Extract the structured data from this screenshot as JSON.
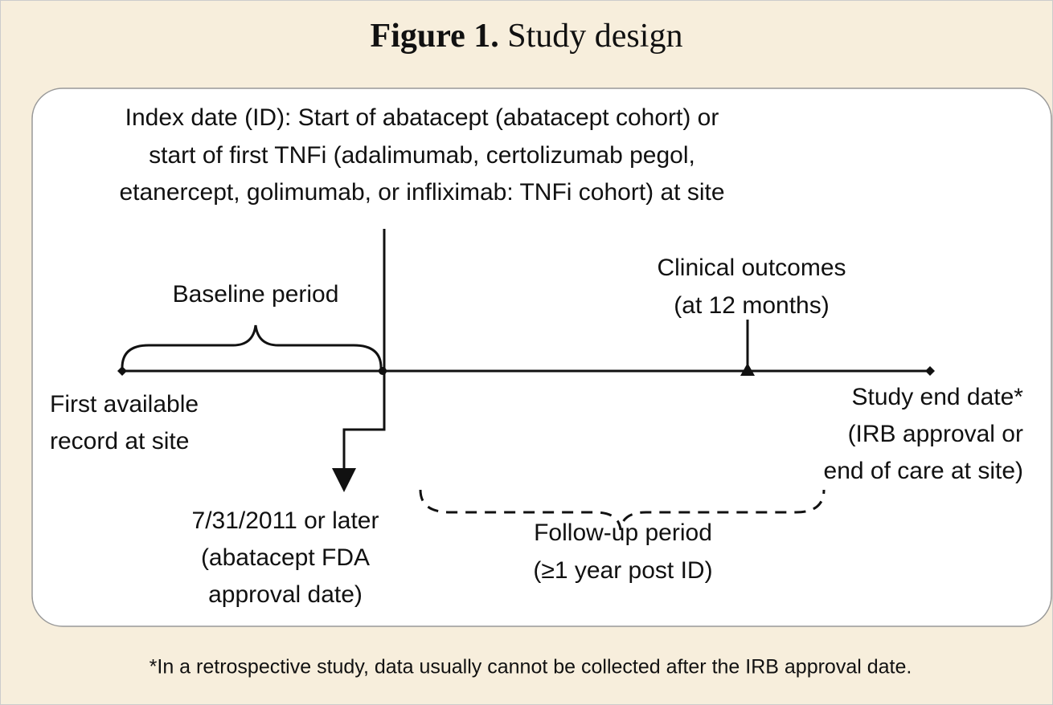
{
  "title": {
    "label": "Figure 1.",
    "text": "Study design"
  },
  "index_date": {
    "lines": [
      "Index date (ID): Start of abatacept (abatacept cohort) or",
      "start of first TNFi (adalimumab, certolizumab pegol,",
      "etanercept, golimumab, or infliximab: TNFi cohort) at site"
    ]
  },
  "baseline": "Baseline period",
  "first_record": {
    "lines": [
      "First available",
      "record at site"
    ]
  },
  "clinical_outcomes": {
    "lines": [
      "Clinical outcomes",
      "(at 12 months)"
    ]
  },
  "study_end": {
    "lines": [
      "Study end date*",
      "(IRB approval or",
      "end of care at site)"
    ]
  },
  "fda_date": {
    "lines": [
      "7/31/2011 or later",
      "(abatacept FDA",
      "approval date)"
    ]
  },
  "follow_up": {
    "lines": [
      "Follow-up period",
      "(≥1 year post ID)"
    ]
  },
  "footnote": "*In a retrospective study, data usually cannot be collected after the IRB approval date."
}
